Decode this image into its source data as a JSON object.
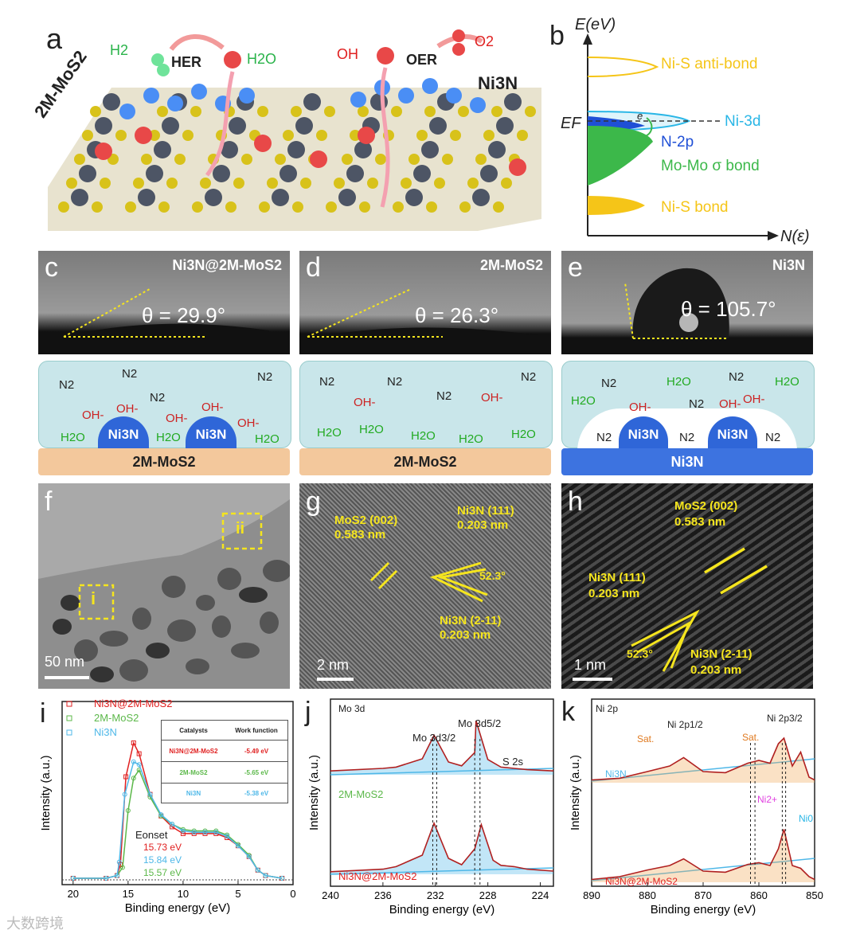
{
  "panels": {
    "a": {
      "letter": "a",
      "left_material": "2M-MoS2",
      "right_material": "Ni3N",
      "her_label": "HER",
      "oer_label": "OER",
      "h2": "H2",
      "h2o": "H2O",
      "oh": "OH",
      "o2": "O2"
    },
    "b": {
      "letter": "b",
      "y_axis": "E(eV)",
      "x_axis": "N(ε)",
      "fermi": "EF",
      "bands": [
        "Ni-S anti-bond",
        "Ni-3d",
        "N-2p",
        "Mo-Mo σ bond",
        "Ni-S bond"
      ],
      "band_colors": [
        "#f5c518",
        "#29b6e6",
        "#1f4fd6",
        "#3cb84a",
        "#f5c518"
      ]
    },
    "c": {
      "letter": "c",
      "title": "Ni3N@2M-MoS2",
      "angle": "θ = 29.9°"
    },
    "d": {
      "letter": "d",
      "title": "2M-MoS2",
      "angle": "θ = 26.3°"
    },
    "e": {
      "letter": "e",
      "title": "Ni3N",
      "angle": "θ = 105.7°"
    },
    "schem_c": {
      "substrate": "2M-MoS2",
      "particle": "Ni3N"
    },
    "schem_d": {
      "substrate": "2M-MoS2"
    },
    "schem_e": {
      "substrate": "Ni3N",
      "particle": "Ni3N"
    },
    "species": {
      "n2": "N2",
      "oh": "OH-",
      "h2o": "H2O"
    },
    "f": {
      "letter": "f",
      "scale": "50 nm",
      "box_i": "i",
      "box_ii": "ii"
    },
    "g": {
      "letter": "g",
      "scale": "2 nm",
      "ann1_title": "MoS2 (002)",
      "ann1_value": "0.583 nm",
      "ann2_title": "Ni3N (111)",
      "ann2_value": "0.203 nm",
      "ann3_title": "Ni3N (2-11)",
      "ann3_value": "0.203 nm",
      "angle": "52.3°"
    },
    "h": {
      "letter": "h",
      "scale": "1 nm",
      "ann1_title": "MoS2 (002)",
      "ann1_value": "0.583 nm",
      "ann2_title": "Ni3N (111)",
      "ann2_value": "0.203 nm",
      "ann3_title": "Ni3N (2-11)",
      "ann3_value": "0.203 nm",
      "angle": "52.3°"
    },
    "i": {
      "letter": "i",
      "legend": [
        "Ni3N@2M-MoS2",
        "2M-MoS2",
        "Ni3N"
      ],
      "table_head": [
        "Catalysts",
        "Work function"
      ],
      "table_rows": [
        [
          "Ni3N@2M-MoS2",
          "-5.49 eV"
        ],
        [
          "2M-MoS2",
          "-5.65 eV"
        ],
        [
          "Ni3N",
          "-5.38 eV"
        ]
      ],
      "onset_label": "Eonset",
      "onsets": [
        "15.73 eV",
        "15.84 eV",
        "15.57 eV"
      ]
    },
    "j": {
      "letter": "j",
      "corner": "Mo 3d",
      "peaks": [
        "Mo 3d3/2",
        "Mo 3d5/2",
        "S 2s"
      ],
      "series_top": "2M-MoS2",
      "series_bottom": "Ni3N@2M-MoS2"
    },
    "k": {
      "letter": "k",
      "corner": "Ni 2p",
      "peaks": [
        "Sat.",
        "Ni 2p1/2",
        "Sat.",
        "Ni 2p3/2"
      ],
      "series_top": "Ni3N",
      "series_bottom": "Ni3N@2M-MoS2",
      "ni2": "Ni2+",
      "ni0": "Ni0"
    },
    "watermark": "大数跨境"
  },
  "chart_data": [
    {
      "type": "line",
      "xlabel": "Binding energy (eV)",
      "ylabel": "Intensity (a.u.)",
      "xlim": [
        21,
        0
      ],
      "x_ticks": [
        20,
        15,
        10,
        5,
        0
      ],
      "series": [
        {
          "name": "Ni3N@2M-MoS2",
          "color": "#e02020",
          "x": [
            20,
            17,
            16,
            15.7,
            15.2,
            14.5,
            14,
            13,
            12,
            11,
            10,
            9,
            8,
            7,
            6,
            5,
            4,
            3.2,
            2.5,
            1
          ],
          "y": [
            0,
            0,
            0.02,
            0.1,
            0.75,
            1.0,
            0.92,
            0.62,
            0.46,
            0.38,
            0.33,
            0.33,
            0.33,
            0.33,
            0.3,
            0.24,
            0.16,
            0.06,
            0.02,
            0
          ]
        },
        {
          "name": "2M-MoS2",
          "color": "#5cb84a",
          "x": [
            20,
            17,
            16,
            15.5,
            15,
            14.5,
            14,
            13,
            12,
            11,
            10,
            9,
            8,
            7,
            6,
            5,
            4,
            3.2,
            2.5,
            1
          ],
          "y": [
            0,
            0,
            0.02,
            0.08,
            0.5,
            0.74,
            0.8,
            0.6,
            0.46,
            0.4,
            0.36,
            0.35,
            0.35,
            0.35,
            0.32,
            0.25,
            0.17,
            0.06,
            0.02,
            0
          ]
        },
        {
          "name": "Ni3N",
          "color": "#4fb8e8",
          "x": [
            20,
            17,
            16,
            15.8,
            15.3,
            14.5,
            14,
            13,
            12,
            11,
            10,
            9,
            8,
            7,
            6,
            5,
            4,
            3.2,
            2.5,
            1
          ],
          "y": [
            0,
            0,
            0.02,
            0.12,
            0.62,
            0.86,
            0.84,
            0.62,
            0.47,
            0.4,
            0.35,
            0.34,
            0.34,
            0.34,
            0.31,
            0.24,
            0.16,
            0.06,
            0.02,
            0
          ]
        }
      ]
    },
    {
      "type": "line",
      "xlabel": "Binding energy (eV)",
      "ylabel": "Intensity (a.u.)",
      "xlim": [
        240,
        223
      ],
      "x_ticks": [
        240,
        236,
        232,
        228,
        224
      ],
      "peak_lines": [
        232.2,
        231.9,
        229.0,
        228.6
      ],
      "series": [
        {
          "name": "2M-MoS2",
          "x": [
            240,
            236,
            235,
            233,
            232.1,
            231,
            230,
            229,
            228.9,
            228,
            227,
            226,
            225,
            223
          ],
          "y": [
            0.06,
            0.1,
            0.12,
            0.25,
            0.62,
            0.2,
            0.14,
            0.35,
            0.85,
            0.24,
            0.12,
            0.1,
            0.08,
            0.06
          ]
        },
        {
          "name": "Ni3N@2M-MoS2",
          "x": [
            240,
            236,
            235,
            233,
            232.1,
            231,
            230,
            229,
            228.5,
            227.6,
            227,
            226,
            225,
            223
          ],
          "y": [
            0.04,
            0.08,
            0.12,
            0.3,
            0.8,
            0.25,
            0.15,
            0.4,
            0.78,
            0.22,
            0.14,
            0.12,
            0.08,
            0.05
          ]
        }
      ]
    },
    {
      "type": "line",
      "xlabel": "Binding energy (eV)",
      "ylabel": "Intensity (a.u.)",
      "xlim": [
        890,
        850
      ],
      "x_ticks": [
        890,
        880,
        870,
        860,
        850
      ],
      "peak_lines": [
        861.5,
        860.7,
        855.8,
        855.2
      ],
      "series": [
        {
          "name": "Ni3N",
          "x": [
            890,
            885,
            880,
            876,
            873.5,
            870,
            866,
            862,
            860,
            858,
            856.5,
            855.5,
            854,
            852.5,
            851,
            850
          ],
          "y": [
            0.05,
            0.08,
            0.2,
            0.3,
            0.45,
            0.2,
            0.18,
            0.35,
            0.4,
            0.35,
            0.7,
            0.8,
            0.3,
            0.55,
            0.1,
            0.05
          ]
        },
        {
          "name": "Ni3N@2M-MoS2",
          "x": [
            890,
            885,
            880,
            876,
            873.5,
            870,
            866,
            862,
            860,
            858,
            856.5,
            855.5,
            854,
            852.5,
            851,
            850
          ],
          "y": [
            0.05,
            0.1,
            0.22,
            0.3,
            0.42,
            0.2,
            0.18,
            0.32,
            0.35,
            0.3,
            0.6,
            0.95,
            0.3,
            0.25,
            0.1,
            0.05
          ]
        }
      ]
    }
  ]
}
